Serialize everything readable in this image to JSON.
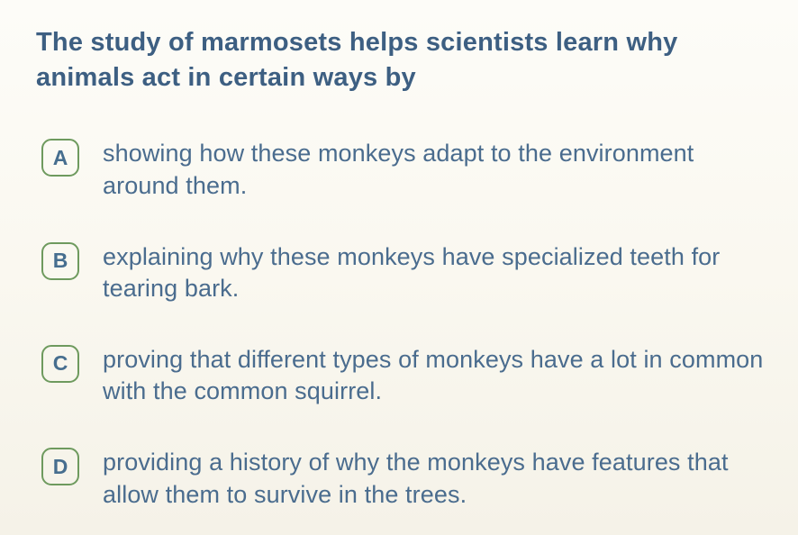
{
  "question": {
    "stem": "The study of marmosets helps scientists learn why animals act in certain ways by",
    "text_color": "#3d5f82",
    "font_size_pt": 22,
    "font_weight": 700
  },
  "choices": [
    {
      "letter": "A",
      "text": "showing how these monkeys adapt to the environment around them."
    },
    {
      "letter": "B",
      "text": "explaining why these monkeys have specialized teeth for tearing bark."
    },
    {
      "letter": "C",
      "text": "proving that different types of monkeys have a lot in common with the common squirrel."
    },
    {
      "letter": "D",
      "text": "providing a history of why the monkeys have features that allow them to survive in the trees."
    }
  ],
  "style": {
    "badge_border_color": "#6e9a5e",
    "badge_border_width": 2.5,
    "badge_border_radius": 11,
    "badge_letter_color": "#466e8f",
    "choice_text_color": "#4a6c8e",
    "choice_font_size_pt": 20,
    "background_gradient": [
      "#fdfcf8",
      "#faf8f0",
      "#f5f2e8"
    ],
    "font_family": "Arial"
  }
}
